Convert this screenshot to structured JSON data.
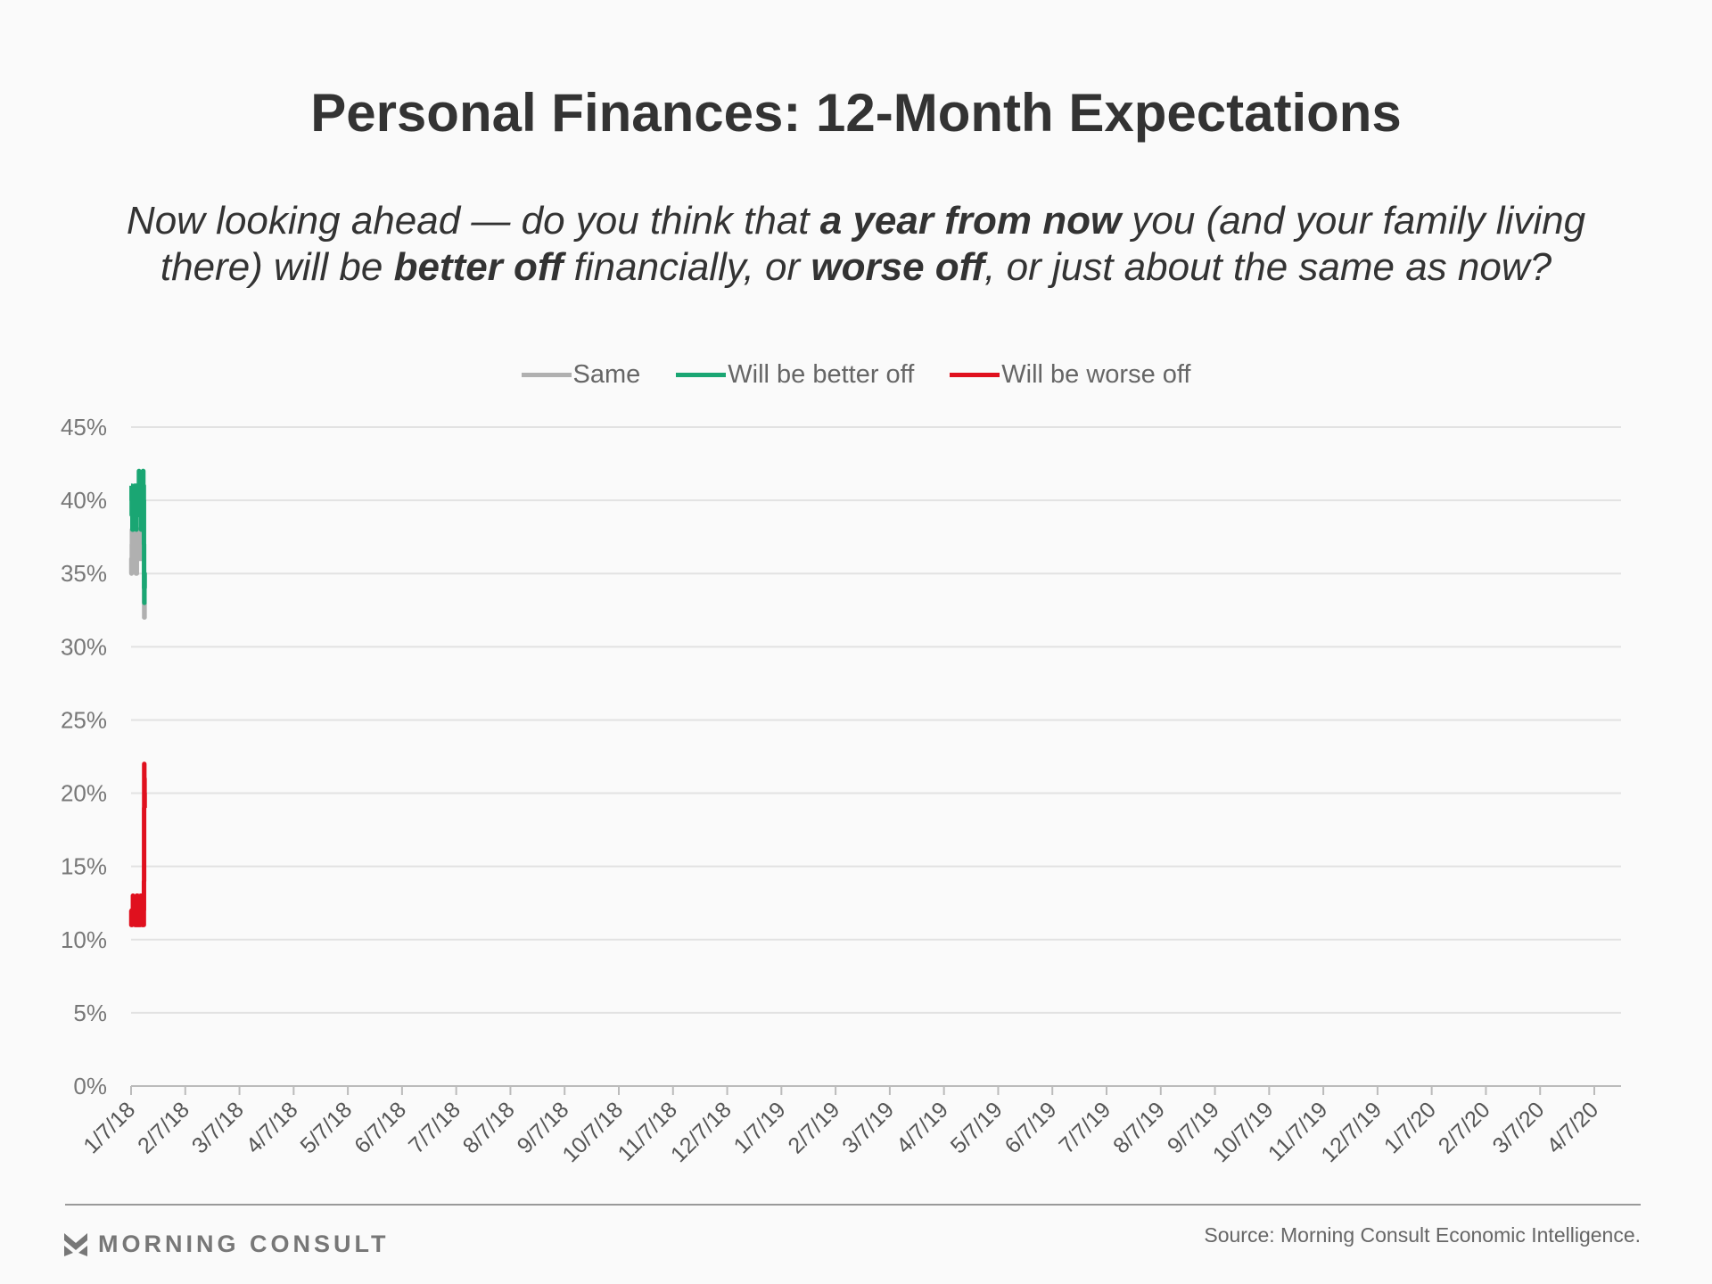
{
  "chart_data": {
    "type": "line",
    "title": "Personal Finances: 12-Month Expectations",
    "subtitle_lines": [
      [
        {
          "text": "Now looking ahead — do you think that ",
          "bold": false
        },
        {
          "text": "a year from now",
          "bold": true
        },
        {
          "text": " you (and your family living",
          "bold": false
        }
      ],
      [
        {
          "text": "there) will be ",
          "bold": false
        },
        {
          "text": "better off",
          "bold": true
        },
        {
          "text": " financially, or ",
          "bold": false
        },
        {
          "text": "worse off",
          "bold": true
        },
        {
          "text": ", or just about the same as now?",
          "bold": false
        }
      ]
    ],
    "xlabel": "",
    "ylabel": "",
    "ylim": [
      0,
      45
    ],
    "yticks": [
      "0%",
      "5%",
      "10%",
      "15%",
      "20%",
      "25%",
      "30%",
      "35%",
      "40%",
      "45%"
    ],
    "ytick_values": [
      0,
      5,
      10,
      15,
      20,
      25,
      30,
      35,
      40,
      45
    ],
    "xticks": [
      "1/7/18",
      "2/7/18",
      "3/7/18",
      "4/7/18",
      "5/7/18",
      "6/7/18",
      "7/7/18",
      "8/7/18",
      "9/7/18",
      "10/7/18",
      "11/7/18",
      "12/7/18",
      "1/7/19",
      "2/7/19",
      "3/7/19",
      "4/7/19",
      "5/7/19",
      "6/7/19",
      "7/7/19",
      "8/7/19",
      "9/7/19",
      "10/7/19",
      "11/7/19",
      "12/7/19",
      "1/7/20",
      "2/7/20",
      "3/7/20",
      "4/7/20"
    ],
    "points_per_month": 4,
    "grid": true,
    "legend_placement": "top-center",
    "series": [
      {
        "name": "Same",
        "color": "#b0b0b0",
        "values": [
          35,
          35,
          36,
          35,
          36,
          36,
          37,
          38,
          37,
          37,
          38,
          37,
          38,
          37,
          38,
          38,
          37,
          38,
          37,
          36,
          37,
          37,
          36,
          37,
          37,
          37,
          37,
          38,
          38,
          37,
          37,
          38,
          38,
          37,
          38,
          37,
          36,
          37,
          36,
          36,
          35,
          38,
          37,
          37,
          36,
          36,
          35,
          36,
          36,
          36,
          36,
          36,
          36,
          36,
          36,
          37,
          37,
          37,
          38,
          37,
          37,
          38,
          38,
          38,
          37,
          37,
          36,
          37,
          37,
          37,
          38,
          37,
          38,
          37,
          38,
          38,
          38,
          38,
          37,
          36,
          37,
          38,
          38,
          37,
          37,
          38,
          37,
          37,
          37,
          37,
          37,
          37,
          37,
          38,
          36,
          37,
          37,
          36,
          37,
          36,
          37,
          37,
          37,
          37,
          37,
          35,
          33,
          32,
          32,
          32,
          33,
          33
        ]
      },
      {
        "name": "Will be better off",
        "color": "#1aa673",
        "values": [
          41,
          41,
          41,
          41,
          40,
          39,
          40,
          40,
          40,
          39,
          39,
          38,
          38,
          38,
          39,
          38,
          39,
          39,
          39,
          40,
          39,
          40,
          40,
          39,
          39,
          40,
          40,
          40,
          41,
          40,
          40,
          39,
          40,
          40,
          39,
          40,
          41,
          40,
          40,
          40,
          40,
          41,
          39,
          38,
          39,
          40,
          40,
          39,
          40,
          39,
          39,
          40,
          40,
          39,
          40,
          40,
          39,
          40,
          39,
          39,
          40,
          41,
          40,
          41,
          42,
          41,
          40,
          41,
          40,
          40,
          41,
          41,
          40,
          41,
          40,
          40,
          41,
          40,
          40,
          39,
          39,
          39,
          38,
          39,
          39,
          39,
          39,
          39,
          40,
          40,
          39,
          40,
          41,
          40,
          41,
          40,
          41,
          42,
          41,
          42,
          41,
          41,
          41,
          41,
          40,
          37,
          34,
          34,
          33,
          34,
          35,
          34
        ]
      },
      {
        "name": "Will be worse off",
        "color": "#e0101e",
        "values": [
          12,
          12,
          11,
          11,
          11,
          12,
          11,
          11,
          11,
          12,
          12,
          12,
          12,
          12,
          12,
          13,
          12,
          12,
          12,
          12,
          12,
          12,
          12,
          12,
          12,
          12,
          12,
          12,
          12,
          12,
          12,
          12,
          11,
          11,
          11,
          11,
          11,
          11,
          11,
          11,
          11,
          11,
          12,
          11,
          12,
          12,
          13,
          13,
          12,
          12,
          12,
          12,
          13,
          12,
          12,
          12,
          11,
          11,
          11,
          11,
          11,
          11,
          12,
          12,
          11,
          11,
          11,
          12,
          12,
          12,
          12,
          12,
          11,
          11,
          12,
          11,
          12,
          12,
          13,
          13,
          13,
          13,
          13,
          13,
          13,
          12,
          13,
          12,
          12,
          12,
          11,
          12,
          11,
          12,
          12,
          11,
          11,
          11,
          11,
          11,
          11,
          11,
          11,
          11,
          12,
          14,
          19,
          22,
          21,
          21,
          20,
          19
        ]
      }
    ]
  },
  "footer": {
    "logo_text": "MORNING CONSULT",
    "source": "Source: Morning Consult Economic Intelligence."
  }
}
